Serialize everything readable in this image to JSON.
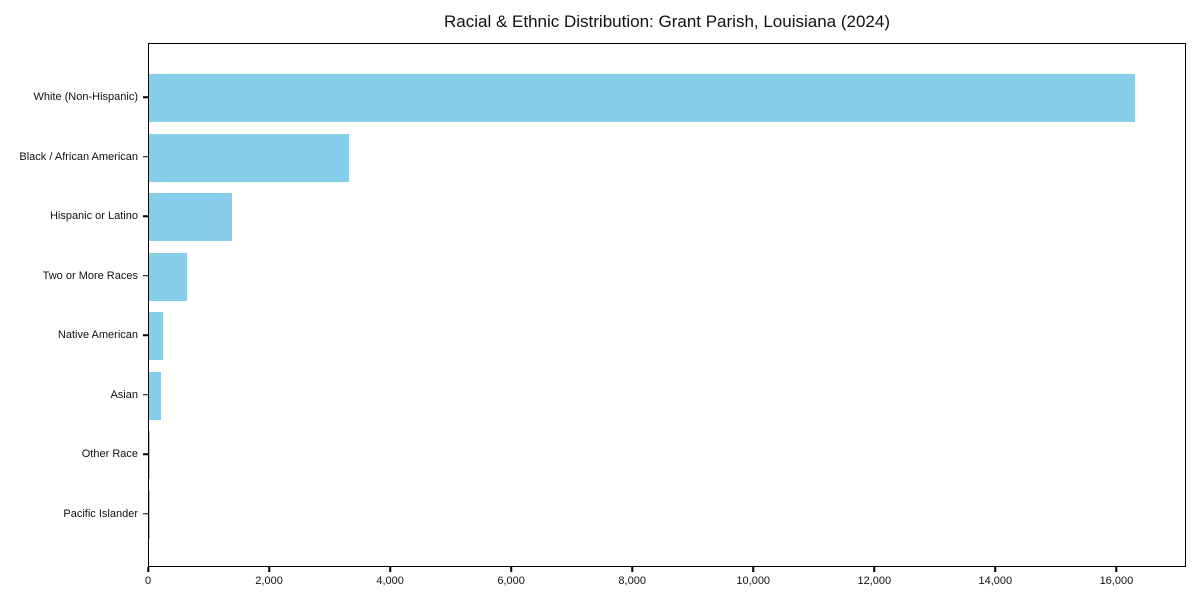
{
  "title": "Racial & Ethnic Distribution: Grant Parish, Louisiana (2024)",
  "colors": {
    "bar": "#87CEEB",
    "axis": "#000000",
    "background": "#ffffff",
    "text": "#111111"
  },
  "chart_data": {
    "type": "bar",
    "orientation": "horizontal",
    "title": "Racial & Ethnic Distribution: Grant Parish, Louisiana (2024)",
    "xlabel": "",
    "ylabel": "",
    "categories": [
      "White (Non-Hispanic)",
      "Black / African American",
      "Hispanic or Latino",
      "Two or More Races",
      "Native American",
      "Asian",
      "Other Race",
      "Pacific Islander"
    ],
    "values": [
      16330,
      3310,
      1380,
      630,
      240,
      200,
      15,
      5
    ],
    "xlim": [
      0,
      17150
    ],
    "x_ticks": [
      0,
      2000,
      4000,
      6000,
      8000,
      10000,
      12000,
      14000,
      16000
    ],
    "x_tick_labels": [
      "0",
      "2,000",
      "4,000",
      "6,000",
      "8,000",
      "10,000",
      "12,000",
      "14,000",
      "16,000"
    ],
    "grid": false,
    "legend": null,
    "bar_color": "#87CEEB"
  }
}
